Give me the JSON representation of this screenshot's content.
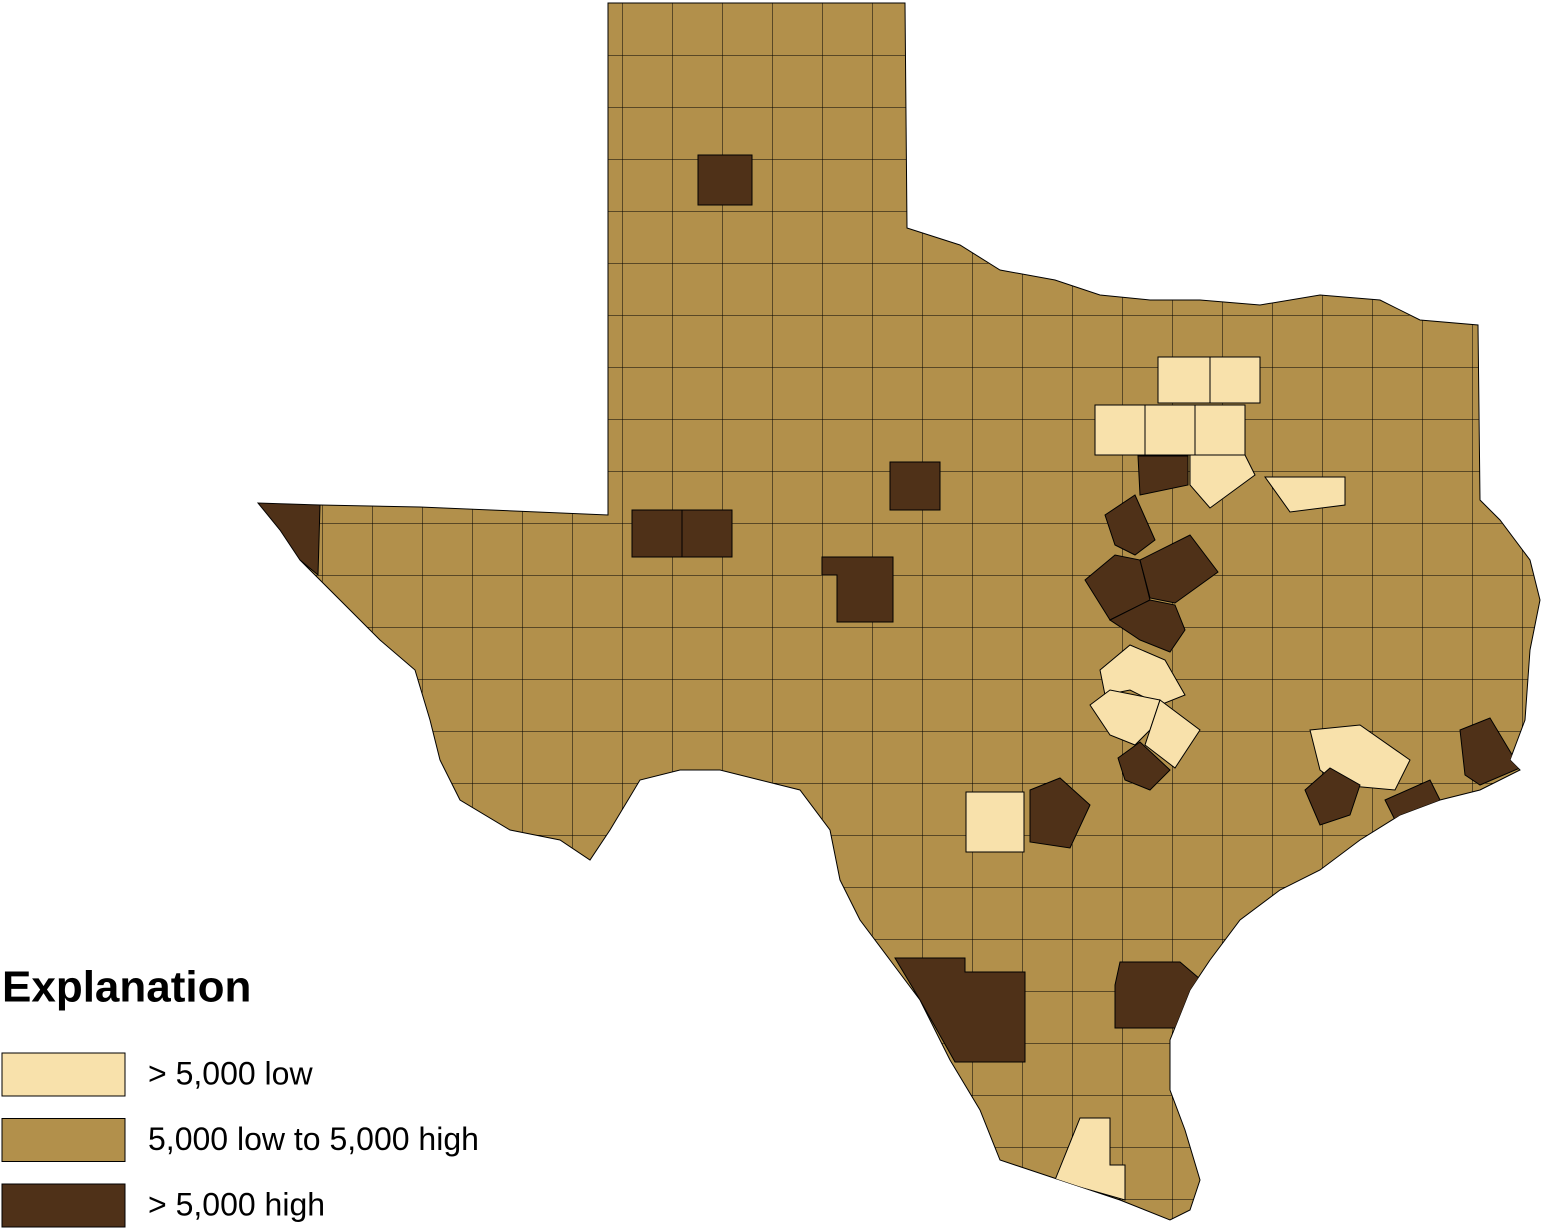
{
  "legend": {
    "title": "Explanation",
    "items": [
      {
        "label": "> 5,000 low",
        "color": "#f8e1ab"
      },
      {
        "label": "5,000 low to 5,000 high",
        "color": "#b2904b"
      },
      {
        "label": "> 5,000 high",
        "color": "#4f3118"
      }
    ]
  }
}
